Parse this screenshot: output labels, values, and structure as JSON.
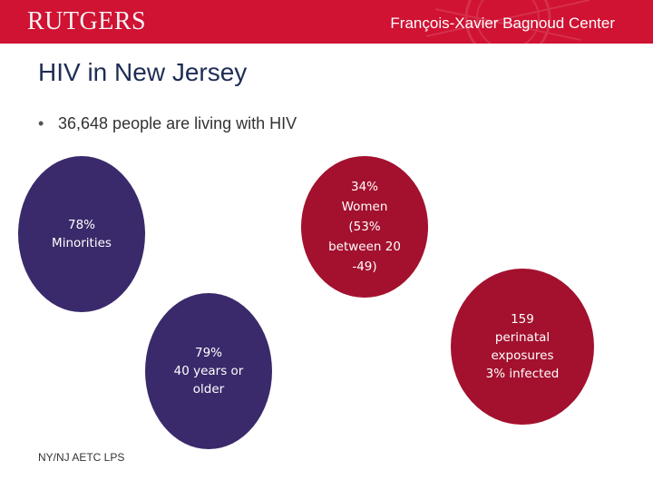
{
  "header": {
    "logo": "RUTGERS",
    "center_name": "François-Xavier Bagnoud Center",
    "color": "#d01233"
  },
  "slide": {
    "title": "HIV in New Jersey",
    "bullet": "36,648 people are living with HIV"
  },
  "circles": [
    {
      "text": "78%\nMinorities",
      "color": "#3a2a6b"
    },
    {
      "text": "34%\nWomen\n(53%\nbetween 20\n-49)",
      "color": "#a3112e"
    },
    {
      "text": "79%\n40 years or\nolder",
      "color": "#3a2a6b"
    },
    {
      "text": "159\nperinatal\nexposures\n3% infected",
      "color": "#a3112e"
    }
  ],
  "footer": {
    "text": "NY/NJ AETC LPS"
  }
}
